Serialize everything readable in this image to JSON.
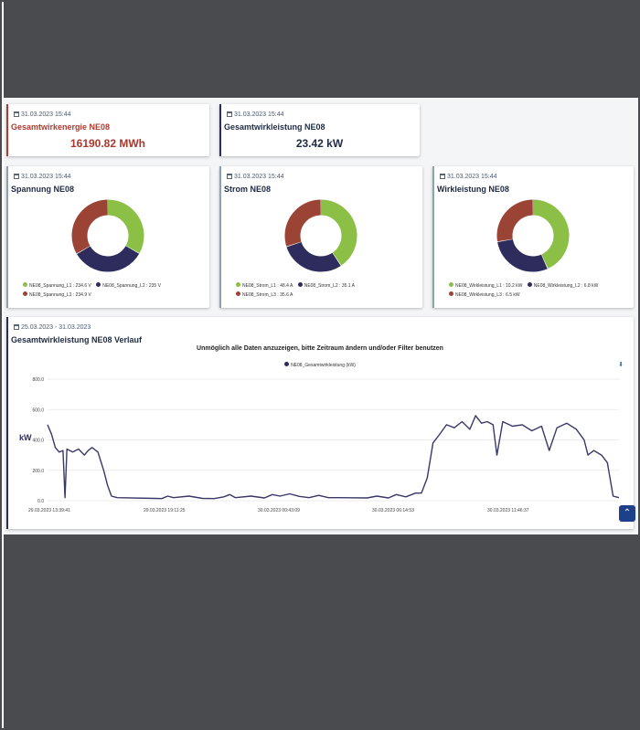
{
  "cards": [
    {
      "date": "31.03.2023 15:44",
      "title": "Gesamtwirkenergie NE08",
      "value": "16190.82 MWh",
      "accent": "#b03a2e"
    },
    {
      "date": "31.03.2023 15:44",
      "title": "Gesamtwirkleistung NE08",
      "value": "23.42 kW",
      "accent": "#2e2c5c"
    }
  ],
  "colors": {
    "l1": "#8cbf45",
    "l2": "#2e2c5c",
    "l3": "#9b4436",
    "line": "#3a3868"
  },
  "chart_data": [
    {
      "type": "pie",
      "title": "Spannung NE08",
      "date": "31.03.2023 15:44",
      "labels": [
        "NE08_Spannung_L1 : 234.6 V",
        "NE08_Spannung_L2 : 235 V",
        "NE08_Spannung_L3 : 234.9 V"
      ],
      "values": [
        234.6,
        235,
        234.9
      ]
    },
    {
      "type": "pie",
      "title": "Strom NE08",
      "date": "31.03.2023 15:44",
      "labels": [
        "NE08_Strom_L1 : 48.4 A",
        "NE08_Strom_L2 : 35.1 A",
        "NE08_Strom_L3 : 35.6 A"
      ],
      "values": [
        48.4,
        35.1,
        35.6
      ]
    },
    {
      "type": "pie",
      "title": "Wirkleistung NE08",
      "date": "31.03.2023 15:44",
      "labels": [
        "NE08_Wirkleistung_L1 : 10.2 kW",
        "NE08_Wirkleistung_L2 : 6.8 kW",
        "NE08_Wirkleistung_L3 : 6.5 kW"
      ],
      "values": [
        10.2,
        6.8,
        6.5
      ]
    },
    {
      "type": "line",
      "date": "25.03.2023 - 31.03.2023",
      "title": "Gesamtwirkleistung NE08 Verlauf",
      "note": "Unmöglich alle Daten anzuzeigen, bitte Zeitraum ändern und/oder Filter benutzen",
      "series_name": "NE08_Gesamtwirkleistung (kW)",
      "ylabel": "kW",
      "ylim": [
        0,
        800
      ],
      "yticks": [
        "800.0",
        "600.0",
        "400.0",
        "200.0",
        "0.0"
      ],
      "xticks": [
        "29.03.2023 13:39:41",
        "29.03.2023 19:11:25",
        "30.03.2023 00:43:09",
        "30.03.2023 06:14:53",
        "30.03.2023 11:46:37"
      ],
      "x_range_hours": [
        0,
        29.5
      ],
      "points": [
        [
          0,
          500
        ],
        [
          0.2,
          440
        ],
        [
          0.4,
          350
        ],
        [
          0.6,
          320
        ],
        [
          0.8,
          330
        ],
        [
          0.9,
          20
        ],
        [
          1.0,
          340
        ],
        [
          1.3,
          320
        ],
        [
          1.6,
          340
        ],
        [
          1.9,
          300
        ],
        [
          2.1,
          330
        ],
        [
          2.3,
          350
        ],
        [
          2.6,
          320
        ],
        [
          2.9,
          200
        ],
        [
          3.1,
          100
        ],
        [
          3.3,
          30
        ],
        [
          3.6,
          20
        ],
        [
          5.5,
          15
        ],
        [
          5.9,
          14
        ],
        [
          6.2,
          30
        ],
        [
          6.5,
          20
        ],
        [
          7.3,
          30
        ],
        [
          8.0,
          15
        ],
        [
          8.6,
          14
        ],
        [
          9.1,
          25
        ],
        [
          9.4,
          40
        ],
        [
          9.7,
          20
        ],
        [
          10.5,
          30
        ],
        [
          11.2,
          18
        ],
        [
          11.6,
          40
        ],
        [
          12.0,
          30
        ],
        [
          12.5,
          45
        ],
        [
          13.0,
          28
        ],
        [
          13.5,
          20
        ],
        [
          14.0,
          35
        ],
        [
          14.5,
          20
        ],
        [
          15.0,
          20
        ],
        [
          16.5,
          18
        ],
        [
          17.0,
          30
        ],
        [
          17.6,
          18
        ],
        [
          18.0,
          40
        ],
        [
          18.5,
          25
        ],
        [
          19.0,
          50
        ],
        [
          19.3,
          50
        ],
        [
          19.6,
          150
        ],
        [
          19.9,
          380
        ],
        [
          20.2,
          430
        ],
        [
          20.6,
          500
        ],
        [
          21.0,
          480
        ],
        [
          21.4,
          520
        ],
        [
          21.8,
          470
        ],
        [
          22.1,
          560
        ],
        [
          22.4,
          510
        ],
        [
          22.7,
          520
        ],
        [
          23.0,
          500
        ],
        [
          23.2,
          300
        ],
        [
          23.5,
          520
        ],
        [
          24.0,
          490
        ],
        [
          24.5,
          500
        ],
        [
          25.0,
          460
        ],
        [
          25.5,
          490
        ],
        [
          25.9,
          330
        ],
        [
          26.3,
          480
        ],
        [
          26.8,
          510
        ],
        [
          27.3,
          470
        ],
        [
          27.7,
          400
        ],
        [
          27.9,
          300
        ],
        [
          28.2,
          330
        ],
        [
          28.6,
          300
        ],
        [
          28.9,
          250
        ],
        [
          29.2,
          30
        ],
        [
          29.5,
          20
        ]
      ]
    }
  ],
  "scroll_top_icon": "chevron-up-icon"
}
